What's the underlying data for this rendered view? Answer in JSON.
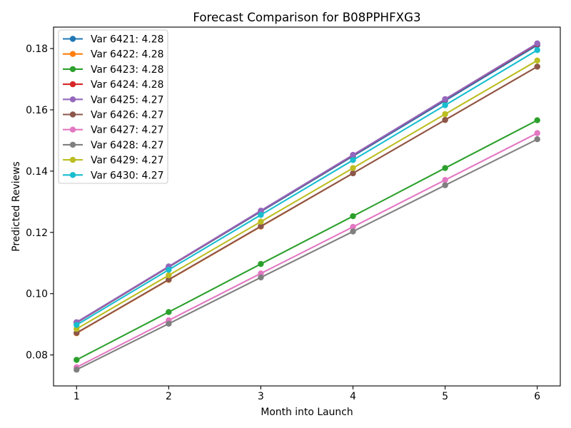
{
  "chart_data": {
    "type": "line",
    "title": "Forecast Comparison for B08PPHFXG3",
    "xlabel": "Month into Launch",
    "ylabel": "Predicted Reviews",
    "x": [
      1,
      2,
      3,
      4,
      5,
      6
    ],
    "xlim": [
      0.75,
      6.25
    ],
    "ylim": [
      0.0699,
      0.187
    ],
    "xticks": [
      1,
      2,
      3,
      4,
      5,
      6
    ],
    "xtick_labels": [
      "1",
      "2",
      "3",
      "4",
      "5",
      "6"
    ],
    "yticks": [
      0.08,
      0.1,
      0.12,
      0.14,
      0.16,
      0.18
    ],
    "ytick_labels": [
      "0.08",
      "0.10",
      "0.12",
      "0.14",
      "0.16",
      "0.18"
    ],
    "grid": false,
    "legend": "upper left",
    "marker": "circle",
    "series": [
      {
        "name": "Var 6421: 4.28",
        "color": "#1f77b4",
        "values": [
          0.0905,
          0.1087,
          0.1268,
          0.1449,
          0.163,
          0.1811
        ]
      },
      {
        "name": "Var 6422: 4.28",
        "color": "#ff7f0e",
        "values": [
          0.0871,
          0.1045,
          0.1219,
          0.1393,
          0.1567,
          0.1741
        ]
      },
      {
        "name": "Var 6423: 4.28",
        "color": "#2ca02c",
        "values": [
          0.0784,
          0.094,
          0.1097,
          0.1253,
          0.141,
          0.1566
        ]
      },
      {
        "name": "Var 6424: 4.28",
        "color": "#d62728",
        "values": [
          0.0906,
          0.1088,
          0.127,
          0.1452,
          0.1634,
          0.1815
        ]
      },
      {
        "name": "Var 6425: 4.27",
        "color": "#9467bd",
        "values": [
          0.0907,
          0.1089,
          0.1271,
          0.1453,
          0.1635,
          0.1817
        ]
      },
      {
        "name": "Var 6426: 4.27",
        "color": "#8c564b",
        "values": [
          0.0872,
          0.1046,
          0.122,
          0.1393,
          0.1567,
          0.1741
        ]
      },
      {
        "name": "Var 6427: 4.27",
        "color": "#e377c2",
        "values": [
          0.076,
          0.0913,
          0.1066,
          0.1218,
          0.1371,
          0.1524
        ]
      },
      {
        "name": "Var 6428: 4.27",
        "color": "#7f7f7f",
        "values": [
          0.0752,
          0.0902,
          0.1053,
          0.1203,
          0.1354,
          0.1504
        ]
      },
      {
        "name": "Var 6429: 4.27",
        "color": "#bcbd22",
        "values": [
          0.0885,
          0.106,
          0.1235,
          0.141,
          0.1586,
          0.1761
        ]
      },
      {
        "name": "Var 6430: 4.27",
        "color": "#17becf",
        "values": [
          0.0898,
          0.1078,
          0.1257,
          0.1436,
          0.1615,
          0.1795
        ]
      }
    ]
  }
}
